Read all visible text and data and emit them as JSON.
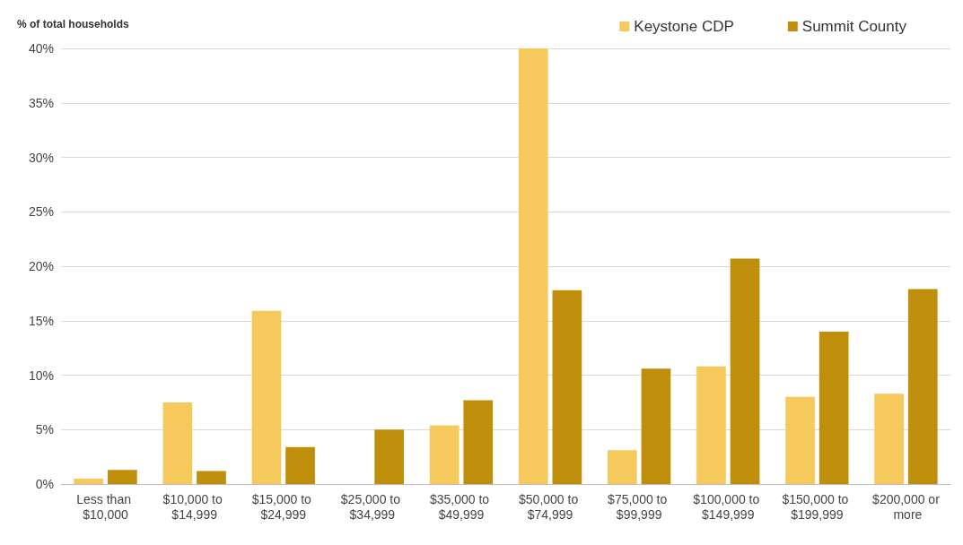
{
  "chart_data": {
    "type": "bar",
    "ylabel": "% of total households",
    "categories": [
      "Less than $10,000",
      "$10,000 to $14,999",
      "$15,000 to $24,999",
      "$25,000 to $34,999",
      "$35,000 to $49,999",
      "$50,000 to $74,999",
      "$75,000 to $99,999",
      "$100,000 to $149,999",
      "$150,000 to $199,999",
      "$200,000 or more"
    ],
    "series": [
      {
        "name": "Keystone CDP",
        "color": "#f5c95c",
        "values": [
          0.5,
          7.5,
          15.9,
          0,
          5.4,
          40,
          3.1,
          10.8,
          8.0,
          8.3
        ]
      },
      {
        "name": "Summit County",
        "color": "#bf8f0c",
        "values": [
          1.3,
          1.2,
          3.4,
          5.0,
          7.7,
          17.8,
          10.6,
          20.7,
          14.0,
          17.9
        ]
      }
    ],
    "ylim": [
      0,
      40
    ],
    "yticks": [
      {
        "value": 0,
        "label": "0%"
      },
      {
        "value": 5,
        "label": "5%"
      },
      {
        "value": 10,
        "label": "10%"
      },
      {
        "value": 15,
        "label": "15%"
      },
      {
        "value": 20,
        "label": "20%"
      },
      {
        "value": 25,
        "label": "25%"
      },
      {
        "value": 30,
        "label": "30%"
      },
      {
        "value": 35,
        "label": "35%"
      },
      {
        "value": 40,
        "label": "40%"
      }
    ],
    "grid": "y",
    "legend": "top right"
  }
}
